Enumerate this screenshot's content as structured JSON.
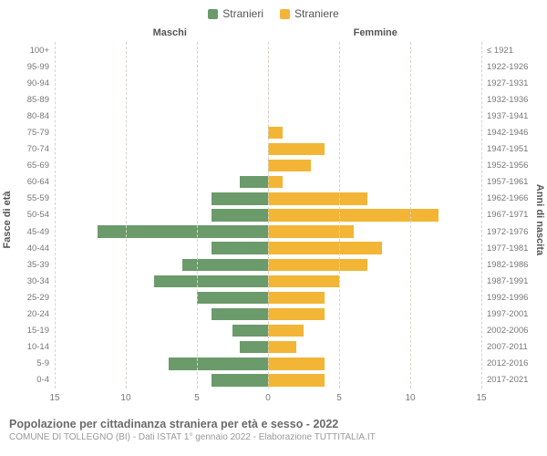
{
  "legend": {
    "male_label": "Stranieri",
    "female_label": "Straniere"
  },
  "chart": {
    "type": "population-pyramid",
    "left_title": "Maschi",
    "right_title": "Femmine",
    "y_left_title": "Fasce di età",
    "y_right_title": "Anni di nascita",
    "xmax": 15,
    "xticks": [
      0,
      5,
      10,
      15
    ],
    "background_color": "#ffffff",
    "grid_color": "#d9d4c8",
    "center_line_color": "#5a5a3a",
    "male_color": "#6b9a6b",
    "female_color": "#f2b535",
    "label_color": "#777777",
    "bar_height_pct": 74,
    "rows": [
      {
        "age": "100+",
        "birth": "≤ 1921",
        "m": 0,
        "f": 0
      },
      {
        "age": "95-99",
        "birth": "1922-1926",
        "m": 0,
        "f": 0
      },
      {
        "age": "90-94",
        "birth": "1927-1931",
        "m": 0,
        "f": 0
      },
      {
        "age": "85-89",
        "birth": "1932-1936",
        "m": 0,
        "f": 0
      },
      {
        "age": "80-84",
        "birth": "1937-1941",
        "m": 0,
        "f": 0
      },
      {
        "age": "75-79",
        "birth": "1942-1946",
        "m": 0,
        "f": 1
      },
      {
        "age": "70-74",
        "birth": "1947-1951",
        "m": 0,
        "f": 4
      },
      {
        "age": "65-69",
        "birth": "1952-1956",
        "m": 0,
        "f": 3
      },
      {
        "age": "60-64",
        "birth": "1957-1961",
        "m": 2,
        "f": 1
      },
      {
        "age": "55-59",
        "birth": "1962-1966",
        "m": 4,
        "f": 7
      },
      {
        "age": "50-54",
        "birth": "1967-1971",
        "m": 4,
        "f": 12
      },
      {
        "age": "45-49",
        "birth": "1972-1976",
        "m": 12,
        "f": 6
      },
      {
        "age": "40-44",
        "birth": "1977-1981",
        "m": 4,
        "f": 8
      },
      {
        "age": "35-39",
        "birth": "1982-1986",
        "m": 6,
        "f": 7
      },
      {
        "age": "30-34",
        "birth": "1987-1991",
        "m": 8,
        "f": 5
      },
      {
        "age": "25-29",
        "birth": "1992-1996",
        "m": 5,
        "f": 4
      },
      {
        "age": "20-24",
        "birth": "1997-2001",
        "m": 4,
        "f": 4
      },
      {
        "age": "15-19",
        "birth": "2002-2006",
        "m": 2.5,
        "f": 2.5
      },
      {
        "age": "10-14",
        "birth": "2007-2011",
        "m": 2,
        "f": 2
      },
      {
        "age": "5-9",
        "birth": "2012-2016",
        "m": 7,
        "f": 4
      },
      {
        "age": "0-4",
        "birth": "2017-2021",
        "m": 4,
        "f": 4
      }
    ]
  },
  "footer": {
    "title": "Popolazione per cittadinanza straniera per età e sesso - 2022",
    "subtitle": "COMUNE DI TOLLEGNO (BI) - Dati ISTAT 1° gennaio 2022 - Elaborazione TUTTITALIA.IT"
  }
}
